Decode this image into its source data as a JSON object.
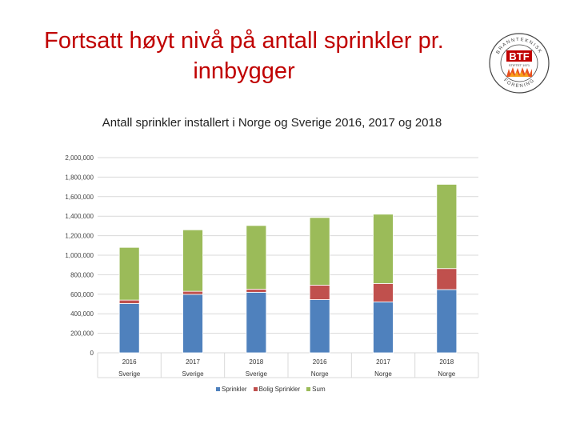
{
  "slide": {
    "title": "Fortsatt høyt nivå på antall sprinkler pr. innbygger"
  },
  "logo": {
    "text": "BTF",
    "year": "STIFTET 1971",
    "arc_top": "BRANNTEKNISK",
    "arc_bottom": "FORENING"
  },
  "chart_data": {
    "type": "bar",
    "stacked": true,
    "title": "Antall sprinkler installert i Norge og Sverige 2016, 2017 og 2018",
    "categories": [
      "2016",
      "2017",
      "2018",
      "2016",
      "2017",
      "2018"
    ],
    "category_groups": [
      "Sverige",
      "Sverige",
      "Sverige",
      "Norge",
      "Norge",
      "Norge"
    ],
    "series": [
      {
        "name": "Sprinkler",
        "color": "#4f81bd",
        "values": [
          505000,
          598000,
          620000,
          545000,
          522000,
          648000
        ]
      },
      {
        "name": "Bolig Sprinkler",
        "color": "#c0504d",
        "values": [
          35000,
          32000,
          32000,
          148000,
          188000,
          215000
        ]
      },
      {
        "name": "Sum",
        "color": "#9bbb59",
        "values": [
          540000,
          630000,
          652000,
          693000,
          710000,
          863000
        ]
      }
    ],
    "yticks": [
      "2,000,000",
      "1,800,000",
      "1,600,000",
      "1,400,000",
      "1,200,000",
      "1,000,000",
      "800,000",
      "600,000",
      "400,000",
      "200,000",
      "0"
    ],
    "ylim": [
      0,
      2000000
    ],
    "legend_position": "bottom",
    "grid": true
  }
}
